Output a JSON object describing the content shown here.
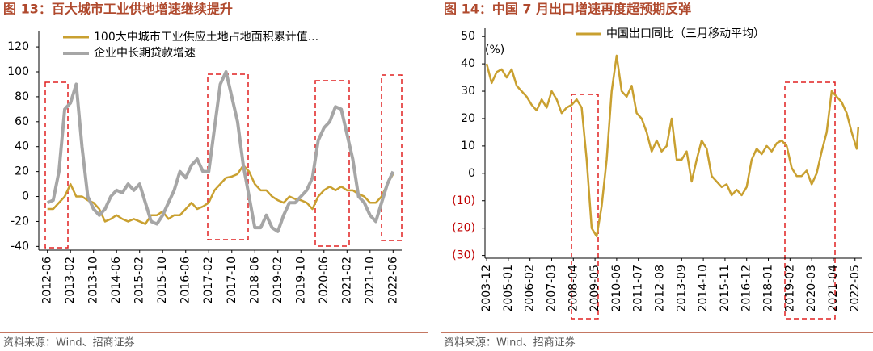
{
  "chart_data": [
    {
      "type": "line",
      "title": "图 13：百大城市工业供地增速继续提升",
      "source": "资料来源：Wind、招商证券",
      "x": [
        "2012-06",
        "2012-08",
        "2012-10",
        "2012-12",
        "2013-02",
        "2013-04",
        "2013-06",
        "2013-08",
        "2013-10",
        "2013-12",
        "2014-02",
        "2014-04",
        "2014-06",
        "2014-08",
        "2014-10",
        "2014-12",
        "2015-02",
        "2015-04",
        "2015-06",
        "2015-08",
        "2015-10",
        "2015-12",
        "2016-02",
        "2016-04",
        "2016-06",
        "2016-08",
        "2016-10",
        "2016-12",
        "2017-02",
        "2017-04",
        "2017-06",
        "2017-08",
        "2017-10",
        "2017-12",
        "2018-02",
        "2018-04",
        "2018-06",
        "2018-08",
        "2018-10",
        "2018-12",
        "2019-02",
        "2019-04",
        "2019-06",
        "2019-08",
        "2019-10",
        "2019-12",
        "2020-02",
        "2020-04",
        "2020-06",
        "2020-08",
        "2020-10",
        "2020-12",
        "2021-02",
        "2021-04",
        "2021-06",
        "2021-08",
        "2021-10",
        "2021-12",
        "2022-02",
        "2022-04",
        "2022-06"
      ],
      "xlim": [
        "2012-03",
        "2022-09"
      ],
      "xticks": [
        "2012-06",
        "2013-02",
        "2013-10",
        "2014-06",
        "2015-02",
        "2015-10",
        "2016-06",
        "2017-02",
        "2017-10",
        "2018-06",
        "2019-02",
        "2019-10",
        "2020-06",
        "2021-02",
        "2021-10",
        "2022-06"
      ],
      "ylim": [
        -43,
        133
      ],
      "yticks": [
        -40,
        -20,
        0,
        20,
        40,
        60,
        80,
        100,
        120
      ],
      "series": [
        {
          "name": "100大中城市工业供应土地占地面积累计值...",
          "color": "#c9a030",
          "values": [
            -10,
            -10,
            -5,
            0,
            10,
            0,
            0,
            -3,
            -5,
            -10,
            -20,
            -18,
            -15,
            -18,
            -20,
            -18,
            -20,
            -22,
            -15,
            -15,
            -12,
            -18,
            -15,
            -15,
            -10,
            -5,
            -10,
            -8,
            -5,
            5,
            10,
            15,
            16,
            18,
            25,
            20,
            10,
            5,
            5,
            0,
            -3,
            -5,
            0,
            -2,
            -3,
            -5,
            -10,
            0,
            5,
            8,
            5,
            8,
            5,
            5,
            2,
            0,
            -5,
            -5,
            0,
            10,
            18
          ]
        },
        {
          "name": "企业中长期贷款增速",
          "color": "#a6a6a6",
          "values": [
            -5,
            -3,
            20,
            70,
            75,
            90,
            40,
            0,
            -10,
            -15,
            -10,
            0,
            5,
            3,
            10,
            5,
            10,
            -5,
            -20,
            -22,
            -15,
            -5,
            5,
            20,
            15,
            25,
            30,
            20,
            20,
            55,
            90,
            100,
            80,
            60,
            25,
            0,
            -25,
            -25,
            -15,
            -25,
            -28,
            -15,
            -5,
            -5,
            0,
            5,
            15,
            45,
            55,
            60,
            72,
            70,
            50,
            30,
            0,
            -5,
            -15,
            -20,
            -5,
            10,
            20
          ]
        }
      ]
    },
    {
      "type": "line",
      "title": "图 14：中国 7 月出口增速再度超预期反弹",
      "source": "资料来源：Wind、招商证券",
      "y_label": "(%)",
      "x": [
        "2003-12",
        "2004-03",
        "2004-06",
        "2004-09",
        "2004-12",
        "2005-03",
        "2005-06",
        "2005-09",
        "2005-12",
        "2006-03",
        "2006-06",
        "2006-09",
        "2006-12",
        "2007-03",
        "2007-06",
        "2007-09",
        "2007-12",
        "2008-03",
        "2008-06",
        "2008-09",
        "2008-12",
        "2009-03",
        "2009-06",
        "2009-09",
        "2009-12",
        "2010-03",
        "2010-06",
        "2010-09",
        "2010-12",
        "2011-03",
        "2011-06",
        "2011-09",
        "2011-12",
        "2012-03",
        "2012-06",
        "2012-09",
        "2012-12",
        "2013-03",
        "2013-06",
        "2013-09",
        "2013-12",
        "2014-03",
        "2014-06",
        "2014-09",
        "2014-12",
        "2015-03",
        "2015-06",
        "2015-09",
        "2015-12",
        "2016-03",
        "2016-06",
        "2016-09",
        "2016-12",
        "2017-03",
        "2017-06",
        "2017-09",
        "2017-12",
        "2018-03",
        "2018-06",
        "2018-09",
        "2018-12",
        "2019-03",
        "2019-06",
        "2019-09",
        "2019-12",
        "2020-03",
        "2020-06",
        "2020-09",
        "2020-12",
        "2021-03",
        "2021-06",
        "2021-09",
        "2021-12",
        "2022-03",
        "2022-06",
        "2022-07"
      ],
      "xlim": [
        "2003-11",
        "2022-09"
      ],
      "xticks": [
        "2003-12",
        "2005-01",
        "2006-02",
        "2007-03",
        "2008-04",
        "2009-05",
        "2010-06",
        "2011-07",
        "2012-08",
        "2013-09",
        "2014-10",
        "2015-11",
        "2016-12",
        "2018-01",
        "2019-02",
        "2020-03",
        "2021-04",
        "2022-05"
      ],
      "ylim": [
        -31,
        53
      ],
      "yticks": [
        {
          "value": -30,
          "label": "(30)"
        },
        {
          "value": -20,
          "label": "(20)"
        },
        {
          "value": -10,
          "label": "(10)"
        },
        0,
        10,
        20,
        30,
        40,
        50
      ],
      "negative_tick_color": "#c00000",
      "series": [
        {
          "name": "中国出口同比（三月移动平均）",
          "color": "#c9a030",
          "values": [
            40,
            33,
            37,
            38,
            35,
            38,
            32,
            30,
            28,
            25,
            23,
            27,
            24,
            30,
            27,
            22,
            24,
            25,
            27,
            24,
            5,
            -20,
            -23,
            -12,
            5,
            30,
            43,
            30,
            28,
            32,
            22,
            20,
            15,
            8,
            12,
            8,
            10,
            20,
            5,
            5,
            8,
            -3,
            5,
            12,
            9,
            -1,
            -3,
            -5,
            -4,
            -8,
            -6,
            -8,
            -5,
            5,
            9,
            7,
            10,
            8,
            11,
            12,
            10,
            2,
            -1,
            -1,
            1,
            -4,
            0,
            8,
            15,
            30,
            28,
            26,
            22,
            15,
            9,
            17
          ]
        }
      ]
    }
  ]
}
